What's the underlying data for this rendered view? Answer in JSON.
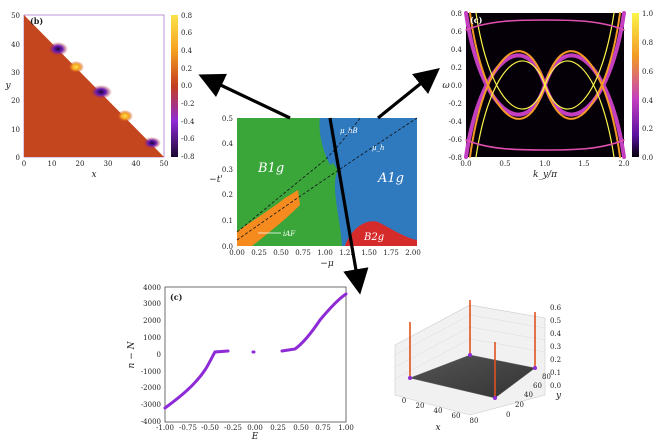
{
  "title": "",
  "panels": {
    "b_map": {
      "letter": "(b)",
      "xlabel": "x",
      "ylabel": "y",
      "xticks": [
        "0",
        "10",
        "20",
        "30",
        "40",
        "50"
      ],
      "yticks": [
        "0",
        "10",
        "20",
        "30",
        "40",
        "50"
      ],
      "colorbar_ticks": [
        "0.8",
        "0.6",
        "0.4",
        "0.2",
        "0.0",
        "-0.2",
        "-0.4",
        "-0.6",
        "-0.8"
      ]
    },
    "c_spectrum": {
      "letter": "(c)",
      "xlabel": "k_y/π",
      "ylabel": "ω",
      "xticks": [
        "0.0",
        "0.5",
        "1.0",
        "1.5",
        "2.0"
      ],
      "yticks": [
        "0.8",
        "0.6",
        "0.4",
        "0.2",
        "0.0",
        "-0.2",
        "-0.4",
        "-0.6",
        "-0.8"
      ],
      "colorbar_ticks": [
        "1.0",
        "0.8",
        "0.6",
        "0.4",
        "0.2",
        "0.0"
      ]
    },
    "phase_diagram": {
      "xlabel": "−μ",
      "ylabel": "−t'",
      "xticks": [
        "0.00",
        "0.25",
        "0.50",
        "0.75",
        "1.00",
        "1.25",
        "1.50",
        "1.75",
        "2.00"
      ],
      "yticks": [
        "0.5",
        "0.4",
        "0.3",
        "0.2",
        "0.1",
        "0.0"
      ],
      "labels": {
        "b1g": "B1g",
        "a1g": "A1g",
        "b2g": "B2g",
        "iaf": "iAF",
        "mu_h": "μ_h",
        "mu_hb": "μ_hB"
      },
      "colors": {
        "b1g": "#3aa63a",
        "a1g": "#2f7abf",
        "b2g": "#d62b2b",
        "iaf": "#f58a1f"
      }
    },
    "c_count": {
      "letter": "(c)",
      "xlabel": "E",
      "ylabel": "n − N",
      "xticks": [
        "-1.00",
        "-0.75",
        "-0.50",
        "-0.25",
        "0.00",
        "0.25",
        "0.50",
        "0.75",
        "1.00"
      ],
      "yticks": [
        "4000",
        "3000",
        "2000",
        "1000",
        "0",
        "-1000",
        "-2000",
        "-3000",
        "-4000"
      ],
      "line_color": "#8e2bd6"
    },
    "surface3d": {
      "xlabel": "x",
      "ylabel": "y",
      "xticks": [
        "0",
        "20",
        "40",
        "60",
        "80"
      ],
      "yticks": [
        "0",
        "20",
        "40",
        "60",
        "80"
      ],
      "zticks": [
        "0.0",
        "0.1",
        "0.2",
        "0.3",
        "0.4",
        "0.5",
        "0.6"
      ]
    }
  }
}
